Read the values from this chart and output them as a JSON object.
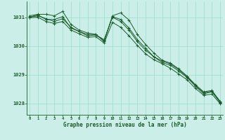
{
  "title": "Graphe pression niveau de la mer (hPa)",
  "bg_color": "#cceee8",
  "grid_color": "#99ddcc",
  "line_color": "#1a5c2a",
  "xlim_min": -0.3,
  "xlim_max": 23.3,
  "ylim_min": 1027.6,
  "ylim_max": 1031.55,
  "yticks": [
    1028,
    1029,
    1030,
    1031
  ],
  "xticks": [
    0,
    1,
    2,
    3,
    4,
    5,
    6,
    7,
    8,
    9,
    10,
    11,
    12,
    13,
    14,
    15,
    16,
    17,
    18,
    19,
    20,
    21,
    22,
    23
  ],
  "series": [
    [
      1031.05,
      1031.1,
      1031.1,
      1031.05,
      1031.2,
      1030.75,
      1030.55,
      1030.45,
      1030.4,
      1030.15,
      1031.05,
      1031.15,
      1030.9,
      1030.4,
      1030.05,
      1029.75,
      1029.5,
      1029.4,
      1029.2,
      1028.95,
      1028.65,
      1028.4,
      1028.45,
      1028.05
    ],
    [
      1031.0,
      1031.05,
      1030.95,
      1030.85,
      1030.95,
      1030.65,
      1030.5,
      1030.35,
      1030.38,
      1030.22,
      1031.0,
      1030.85,
      1030.55,
      1030.15,
      1029.85,
      1029.62,
      1029.42,
      1029.32,
      1029.12,
      1028.9,
      1028.6,
      1028.33,
      1028.4,
      1028.02
    ],
    [
      1030.98,
      1031.0,
      1030.85,
      1030.78,
      1030.85,
      1030.55,
      1030.42,
      1030.3,
      1030.32,
      1030.1,
      1030.82,
      1030.65,
      1030.35,
      1030.02,
      1029.72,
      1029.52,
      1029.38,
      1029.22,
      1029.02,
      1028.82,
      1028.52,
      1028.28,
      1028.32,
      1027.98
    ],
    [
      1031.0,
      1031.08,
      1030.92,
      1030.92,
      1031.02,
      1030.62,
      1030.5,
      1030.4,
      1030.4,
      1030.18,
      1031.02,
      1030.92,
      1030.62,
      1030.22,
      1029.92,
      1029.62,
      1029.47,
      1029.37,
      1029.17,
      1028.92,
      1028.62,
      1028.37,
      1028.42,
      1028.07
    ]
  ]
}
